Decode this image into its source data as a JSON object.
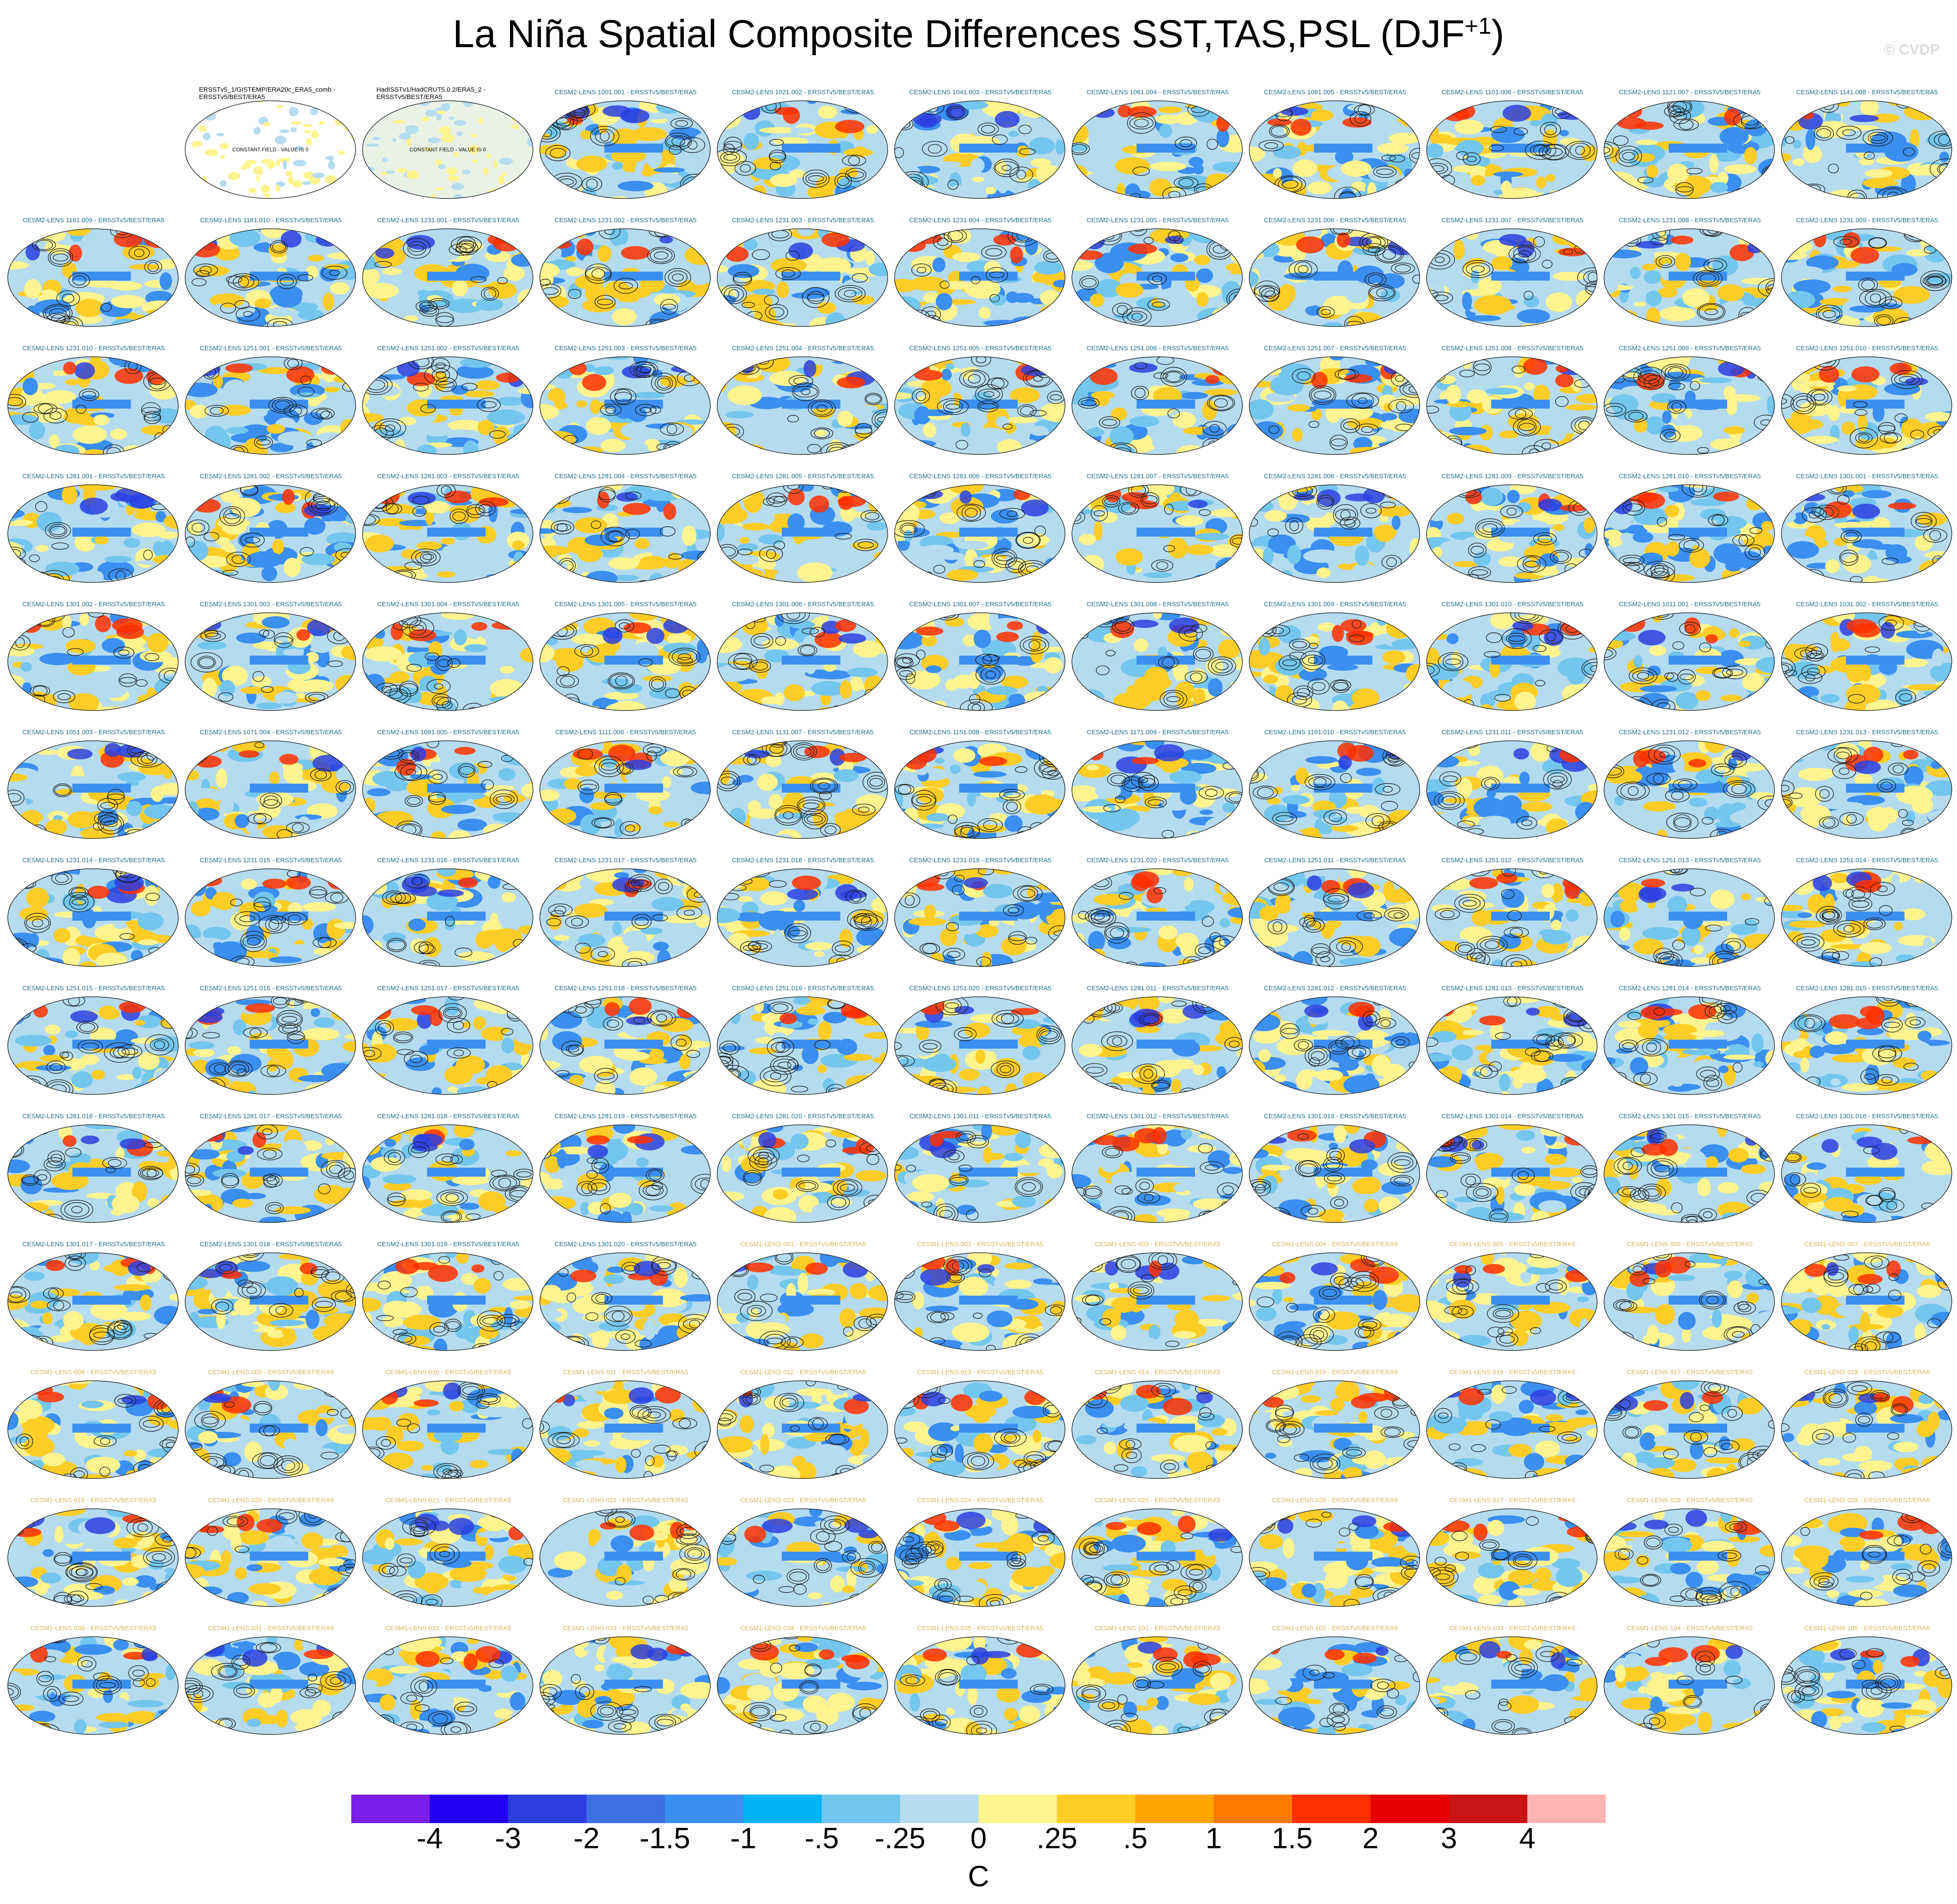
{
  "title_main": "La Niña Spatial Composite Differences SST,TAS,PSL (DJF",
  "title_sup": "+1",
  "title_close": ")",
  "watermark": "© CVDP",
  "colors": {
    "cesm2_label": "#1f6f8f",
    "cesm1_label": "#d6b85a",
    "obs_label": "#000000",
    "contour": "#1a1a1a",
    "ocean_base": "#b5dbef"
  },
  "chart_data": {
    "type": "heatmap",
    "grid": {
      "columns": 11,
      "rows": 13
    },
    "panels": [
      {
        "label": "",
        "kind": "empty"
      },
      {
        "label": "ERSSTv5_1/GISTEMP/ERA20c_ERA5_comb - ERSSTv5/BEST/ERA5",
        "kind": "obs",
        "note": "CONSTANT FIELD - VALUE IS 0"
      },
      {
        "label": "HadISSTv1/HadCRUT5.0.2/ERA5_2 - ERSSTv5/BEST/ERA5",
        "kind": "obs",
        "note": "CONSTANT FIELD - VALUE IS 0"
      },
      {
        "label": "CESM2-LENS 1001.001 - ERSSTv5/BEST/ERA5",
        "kind": "cesm2"
      },
      {
        "label": "CESM2-LENS 1021.002 - ERSSTv5/BEST/ERA5",
        "kind": "cesm2"
      },
      {
        "label": "CESM2-LENS 1041.003 - ERSSTv5/BEST/ERA5",
        "kind": "cesm2"
      },
      {
        "label": "CESM2-LENS 1061.004 - ERSSTv5/BEST/ERA5",
        "kind": "cesm2"
      },
      {
        "label": "CESM2-LENS 1081.005 - ERSSTv5/BEST/ERA5",
        "kind": "cesm2"
      },
      {
        "label": "CESM2-LENS 1101.006 - ERSSTv5/BEST/ERA5",
        "kind": "cesm2"
      },
      {
        "label": "CESM2-LENS 1121.007 - ERSSTv5/BEST/ERA5",
        "kind": "cesm2"
      },
      {
        "label": "CESM2-LENS 1141.008 - ERSSTv5/BEST/ERA5",
        "kind": "cesm2"
      },
      {
        "label": "CESM2-LENS 1161.009 - ERSSTv5/BEST/ERA5",
        "kind": "cesm2"
      },
      {
        "label": "CESM2-LENS 1181.010 - ERSSTv5/BEST/ERA5",
        "kind": "cesm2"
      },
      {
        "label": "CESM2-LENS 1231.001 - ERSSTv5/BEST/ERA5",
        "kind": "cesm2"
      },
      {
        "label": "CESM2-LENS 1231.002 - ERSSTv5/BEST/ERA5",
        "kind": "cesm2"
      },
      {
        "label": "CESM2-LENS 1231.003 - ERSSTv5/BEST/ERA5",
        "kind": "cesm2"
      },
      {
        "label": "CESM2-LENS 1231.004 - ERSSTv5/BEST/ERA5",
        "kind": "cesm2"
      },
      {
        "label": "CESM2-LENS 1231.005 - ERSSTv5/BEST/ERA5",
        "kind": "cesm2"
      },
      {
        "label": "CESM2-LENS 1231.006 - ERSSTv5/BEST/ERA5",
        "kind": "cesm2"
      },
      {
        "label": "CESM2-LENS 1231.007 - ERSSTv5/BEST/ERA5",
        "kind": "cesm2"
      },
      {
        "label": "CESM2-LENS 1231.008 - ERSSTv5/BEST/ERA5",
        "kind": "cesm2"
      },
      {
        "label": "CESM2-LENS 1231.009 - ERSSTv5/BEST/ERA5",
        "kind": "cesm2"
      },
      {
        "label": "CESM2-LENS 1231.010 - ERSSTv5/BEST/ERA5",
        "kind": "cesm2"
      },
      {
        "label": "CESM2-LENS 1251.001 - ERSSTv5/BEST/ERA5",
        "kind": "cesm2"
      },
      {
        "label": "CESM2-LENS 1251.002 - ERSSTv5/BEST/ERA5",
        "kind": "cesm2"
      },
      {
        "label": "CESM2-LENS 1251.003 - ERSSTv5/BEST/ERA5",
        "kind": "cesm2"
      },
      {
        "label": "CESM2-LENS 1251.004 - ERSSTv5/BEST/ERA5",
        "kind": "cesm2"
      },
      {
        "label": "CESM2-LENS 1251.005 - ERSSTv5/BEST/ERA5",
        "kind": "cesm2"
      },
      {
        "label": "CESM2-LENS 1251.006 - ERSSTv5/BEST/ERA5",
        "kind": "cesm2"
      },
      {
        "label": "CESM2-LENS 1251.007 - ERSSTv5/BEST/ERA5",
        "kind": "cesm2"
      },
      {
        "label": "CESM2-LENS 1251.008 - ERSSTv5/BEST/ERA5",
        "kind": "cesm2"
      },
      {
        "label": "CESM2-LENS 1251.009 - ERSSTv5/BEST/ERA5",
        "kind": "cesm2"
      },
      {
        "label": "CESM2-LENS 1251.010 - ERSSTv5/BEST/ERA5",
        "kind": "cesm2"
      },
      {
        "label": "CESM2-LENS 1281.001 - ERSSTv5/BEST/ERA5",
        "kind": "cesm2"
      },
      {
        "label": "CESM2-LENS 1281.002 - ERSSTv5/BEST/ERA5",
        "kind": "cesm2"
      },
      {
        "label": "CESM2-LENS 1281.003 - ERSSTv5/BEST/ERA5",
        "kind": "cesm2"
      },
      {
        "label": "CESM2-LENS 1281.004 - ERSSTv5/BEST/ERA5",
        "kind": "cesm2"
      },
      {
        "label": "CESM2-LENS 1281.005 - ERSSTv5/BEST/ERA5",
        "kind": "cesm2"
      },
      {
        "label": "CESM2-LENS 1281.006 - ERSSTv5/BEST/ERA5",
        "kind": "cesm2"
      },
      {
        "label": "CESM2-LENS 1281.007 - ERSSTv5/BEST/ERA5",
        "kind": "cesm2"
      },
      {
        "label": "CESM2-LENS 1281.008 - ERSSTv5/BEST/ERA5",
        "kind": "cesm2"
      },
      {
        "label": "CESM2-LENS 1281.009 - ERSSTv5/BEST/ERA5",
        "kind": "cesm2"
      },
      {
        "label": "CESM2-LENS 1281.010 - ERSSTv5/BEST/ERA5",
        "kind": "cesm2"
      },
      {
        "label": "CESM2-LENS 1301.001 - ERSSTv5/BEST/ERA5",
        "kind": "cesm2"
      },
      {
        "label": "CESM2-LENS 1301.002 - ERSSTv5/BEST/ERA5",
        "kind": "cesm2"
      },
      {
        "label": "CESM2-LENS 1301.003 - ERSSTv5/BEST/ERA5",
        "kind": "cesm2"
      },
      {
        "label": "CESM2-LENS 1301.004 - ERSSTv5/BEST/ERA5",
        "kind": "cesm2"
      },
      {
        "label": "CESM2-LENS 1301.005 - ERSSTv5/BEST/ERA5",
        "kind": "cesm2"
      },
      {
        "label": "CESM2-LENS 1301.006 - ERSSTv5/BEST/ERA5",
        "kind": "cesm2"
      },
      {
        "label": "CESM2-LENS 1301.007 - ERSSTv5/BEST/ERA5",
        "kind": "cesm2"
      },
      {
        "label": "CESM2-LENS 1301.008 - ERSSTv5/BEST/ERA5",
        "kind": "cesm2"
      },
      {
        "label": "CESM2-LENS 1301.009 - ERSSTv5/BEST/ERA5",
        "kind": "cesm2"
      },
      {
        "label": "CESM2-LENS 1301.010 - ERSSTv5/BEST/ERA5",
        "kind": "cesm2"
      },
      {
        "label": "CESM2-LENS 1011.001 - ERSSTv5/BEST/ERA5",
        "kind": "cesm2"
      },
      {
        "label": "CESM2-LENS 1031.002 - ERSSTv5/BEST/ERA5",
        "kind": "cesm2"
      },
      {
        "label": "CESM2-LENS 1051.003 - ERSSTv5/BEST/ERA5",
        "kind": "cesm2"
      },
      {
        "label": "CESM2-LENS 1071.004 - ERSSTv5/BEST/ERA5",
        "kind": "cesm2"
      },
      {
        "label": "CESM2-LENS 1091.005 - ERSSTv5/BEST/ERA5",
        "kind": "cesm2"
      },
      {
        "label": "CESM2-LENS 1111.006 - ERSSTv5/BEST/ERA5",
        "kind": "cesm2"
      },
      {
        "label": "CESM2-LENS 1131.007 - ERSSTv5/BEST/ERA5",
        "kind": "cesm2"
      },
      {
        "label": "CESM2-LENS 1151.008 - ERSSTv5/BEST/ERA5",
        "kind": "cesm2"
      },
      {
        "label": "CESM2-LENS 1171.009 - ERSSTv5/BEST/ERA5",
        "kind": "cesm2"
      },
      {
        "label": "CESM2-LENS 1191.010 - ERSSTv5/BEST/ERA5",
        "kind": "cesm2"
      },
      {
        "label": "CESM2-LENS 1231.011 - ERSSTv5/BEST/ERA5",
        "kind": "cesm2"
      },
      {
        "label": "CESM2-LENS 1231.012 - ERSSTv5/BEST/ERA5",
        "kind": "cesm2"
      },
      {
        "label": "CESM2-LENS 1231.013 - ERSSTv5/BEST/ERA5",
        "kind": "cesm2"
      },
      {
        "label": "CESM2-LENS 1231.014 - ERSSTv5/BEST/ERA5",
        "kind": "cesm2"
      },
      {
        "label": "CESM2-LENS 1231.015 - ERSSTv5/BEST/ERA5",
        "kind": "cesm2"
      },
      {
        "label": "CESM2-LENS 1231.016 - ERSSTv5/BEST/ERA5",
        "kind": "cesm2"
      },
      {
        "label": "CESM2-LENS 1231.017 - ERSSTv5/BEST/ERA5",
        "kind": "cesm2"
      },
      {
        "label": "CESM2-LENS 1231.018 - ERSSTv5/BEST/ERA5",
        "kind": "cesm2"
      },
      {
        "label": "CESM2-LENS 1231.019 - ERSSTv5/BEST/ERA5",
        "kind": "cesm2"
      },
      {
        "label": "CESM2-LENS 1231.020 - ERSSTv5/BEST/ERA5",
        "kind": "cesm2"
      },
      {
        "label": "CESM2-LENS 1251.011 - ERSSTv5/BEST/ERA5",
        "kind": "cesm2"
      },
      {
        "label": "CESM2-LENS 1251.012 - ERSSTv5/BEST/ERA5",
        "kind": "cesm2"
      },
      {
        "label": "CESM2-LENS 1251.013 - ERSSTv5/BEST/ERA5",
        "kind": "cesm2"
      },
      {
        "label": "CESM2-LENS 1251.014 - ERSSTv5/BEST/ERA5",
        "kind": "cesm2"
      },
      {
        "label": "CESM2-LENS 1251.015 - ERSSTv5/BEST/ERA5",
        "kind": "cesm2"
      },
      {
        "label": "CESM2-LENS 1251.016 - ERSSTv5/BEST/ERA5",
        "kind": "cesm2"
      },
      {
        "label": "CESM2-LENS 1251.017 - ERSSTv5/BEST/ERA5",
        "kind": "cesm2"
      },
      {
        "label": "CESM2-LENS 1251.018 - ERSSTv5/BEST/ERA5",
        "kind": "cesm2"
      },
      {
        "label": "CESM2-LENS 1251.019 - ERSSTv5/BEST/ERA5",
        "kind": "cesm2"
      },
      {
        "label": "CESM2-LENS 1251.020 - ERSSTv5/BEST/ERA5",
        "kind": "cesm2"
      },
      {
        "label": "CESM2-LENS 1281.011 - ERSSTv5/BEST/ERA5",
        "kind": "cesm2"
      },
      {
        "label": "CESM2-LENS 1281.012 - ERSSTv5/BEST/ERA5",
        "kind": "cesm2"
      },
      {
        "label": "CESM2-LENS 1281.013 - ERSSTv5/BEST/ERA5",
        "kind": "cesm2"
      },
      {
        "label": "CESM2-LENS 1281.014 - ERSSTv5/BEST/ERA5",
        "kind": "cesm2"
      },
      {
        "label": "CESM2-LENS 1281.015 - ERSSTv5/BEST/ERA5",
        "kind": "cesm2"
      },
      {
        "label": "CESM2-LENS 1281.016 - ERSSTv5/BEST/ERA5",
        "kind": "cesm2"
      },
      {
        "label": "CESM2-LENS 1281.017 - ERSSTv5/BEST/ERA5",
        "kind": "cesm2"
      },
      {
        "label": "CESM2-LENS 1281.018 - ERSSTv5/BEST/ERA5",
        "kind": "cesm2"
      },
      {
        "label": "CESM2-LENS 1281.019 - ERSSTv5/BEST/ERA5",
        "kind": "cesm2"
      },
      {
        "label": "CESM2-LENS 1281.020 - ERSSTv5/BEST/ERA5",
        "kind": "cesm2"
      },
      {
        "label": "CESM2-LENS 1301.011 - ERSSTv5/BEST/ERA5",
        "kind": "cesm2"
      },
      {
        "label": "CESM2-LENS 1301.012 - ERSSTv5/BEST/ERA5",
        "kind": "cesm2"
      },
      {
        "label": "CESM2-LENS 1301.013 - ERSSTv5/BEST/ERA5",
        "kind": "cesm2"
      },
      {
        "label": "CESM2-LENS 1301.014 - ERSSTv5/BEST/ERA5",
        "kind": "cesm2"
      },
      {
        "label": "CESM2-LENS 1301.015 - ERSSTv5/BEST/ERA5",
        "kind": "cesm2"
      },
      {
        "label": "CESM2-LENS 1301.016 - ERSSTv5/BEST/ERA5",
        "kind": "cesm2"
      },
      {
        "label": "CESM2-LENS 1301.017 - ERSSTv5/BEST/ERA5",
        "kind": "cesm2"
      },
      {
        "label": "CESM2-LENS 1301.018 - ERSSTv5/BEST/ERA5",
        "kind": "cesm2"
      },
      {
        "label": "CESM2-LENS 1301.019 - ERSSTv5/BEST/ERA5",
        "kind": "cesm2"
      },
      {
        "label": "CESM2-LENS 1301.020 - ERSSTv5/BEST/ERA5",
        "kind": "cesm2"
      },
      {
        "label": "CESM1-LENS 001 - ERSSTv5/BEST/ERA5",
        "kind": "cesm1"
      },
      {
        "label": "CESM1-LENS 002 - ERSSTv5/BEST/ERA5",
        "kind": "cesm1"
      },
      {
        "label": "CESM1-LENS 003 - ERSSTv5/BEST/ERA5",
        "kind": "cesm1"
      },
      {
        "label": "CESM1-LENS 004 - ERSSTv5/BEST/ERA5",
        "kind": "cesm1"
      },
      {
        "label": "CESM1-LENS 005 - ERSSTv5/BEST/ERA5",
        "kind": "cesm1"
      },
      {
        "label": "CESM1-LENS 006 - ERSSTv5/BEST/ERA5",
        "kind": "cesm1"
      },
      {
        "label": "CESM1-LENS 007 - ERSSTv5/BEST/ERA5",
        "kind": "cesm1"
      },
      {
        "label": "CESM1-LENS 008 - ERSSTv5/BEST/ERA5",
        "kind": "cesm1"
      },
      {
        "label": "CESM1-LENS 009 - ERSSTv5/BEST/ERA5",
        "kind": "cesm1"
      },
      {
        "label": "CESM1-LENS 010 - ERSSTv5/BEST/ERA5",
        "kind": "cesm1"
      },
      {
        "label": "CESM1-LENS 011 - ERSSTv5/BEST/ERA5",
        "kind": "cesm1"
      },
      {
        "label": "CESM1-LENS 012 - ERSSTv5/BEST/ERA5",
        "kind": "cesm1"
      },
      {
        "label": "CESM1-LENS 013 - ERSSTv5/BEST/ERA5",
        "kind": "cesm1"
      },
      {
        "label": "CESM1-LENS 014 - ERSSTv5/BEST/ERA5",
        "kind": "cesm1"
      },
      {
        "label": "CESM1-LENS 015 - ERSSTv5/BEST/ERA5",
        "kind": "cesm1"
      },
      {
        "label": "CESM1-LENS 016 - ERSSTv5/BEST/ERA5",
        "kind": "cesm1"
      },
      {
        "label": "CESM1-LENS 017 - ERSSTv5/BEST/ERA5",
        "kind": "cesm1"
      },
      {
        "label": "CESM1-LENS 018 - ERSSTv5/BEST/ERA5",
        "kind": "cesm1"
      },
      {
        "label": "CESM1-LENS 019 - ERSSTv5/BEST/ERA5",
        "kind": "cesm1"
      },
      {
        "label": "CESM1-LENS 020 - ERSSTv5/BEST/ERA5",
        "kind": "cesm1"
      },
      {
        "label": "CESM1-LENS 021 - ERSSTv5/BEST/ERA5",
        "kind": "cesm1"
      },
      {
        "label": "CESM1-LENS 022 - ERSSTv5/BEST/ERA5",
        "kind": "cesm1"
      },
      {
        "label": "CESM1-LENS 023 - ERSSTv5/BEST/ERA5",
        "kind": "cesm1"
      },
      {
        "label": "CESM1-LENS 024 - ERSSTv5/BEST/ERA5",
        "kind": "cesm1"
      },
      {
        "label": "CESM1-LENS 025 - ERSSTv5/BEST/ERA5",
        "kind": "cesm1"
      },
      {
        "label": "CESM1-LENS 026 - ERSSTv5/BEST/ERA5",
        "kind": "cesm1"
      },
      {
        "label": "CESM1-LENS 027 - ERSSTv5/BEST/ERA5",
        "kind": "cesm1"
      },
      {
        "label": "CESM1-LENS 028 - ERSSTv5/BEST/ERA5",
        "kind": "cesm1"
      },
      {
        "label": "CESM1-LENS 029 - ERSSTv5/BEST/ERA5",
        "kind": "cesm1"
      },
      {
        "label": "CESM1-LENS 030 - ERSSTv5/BEST/ERA5",
        "kind": "cesm1"
      },
      {
        "label": "CESM1-LENS 031 - ERSSTv5/BEST/ERA5",
        "kind": "cesm1"
      },
      {
        "label": "CESM1-LENS 032 - ERSSTv5/BEST/ERA5",
        "kind": "cesm1"
      },
      {
        "label": "CESM1-LENS 033 - ERSSTv5/BEST/ERA5",
        "kind": "cesm1"
      },
      {
        "label": "CESM1-LENS 034 - ERSSTv5/BEST/ERA5",
        "kind": "cesm1"
      },
      {
        "label": "CESM1-LENS 035 - ERSSTv5/BEST/ERA5",
        "kind": "cesm1"
      },
      {
        "label": "CESM1-LENS 101 - ERSSTv5/BEST/ERA5",
        "kind": "cesm1"
      },
      {
        "label": "CESM1-LENS 102 - ERSSTv5/BEST/ERA5",
        "kind": "cesm1"
      },
      {
        "label": "CESM1-LENS 103 - ERSSTv5/BEST/ERA5",
        "kind": "cesm1"
      },
      {
        "label": "CESM1-LENS 104 - ERSSTv5/BEST/ERA5",
        "kind": "cesm1"
      },
      {
        "label": "CESM1-LENS 105 - ERSSTv5/BEST/ERA5",
        "kind": "cesm1"
      }
    ],
    "colorbar": {
      "colors": [
        "#7b1fe8",
        "#2400f0",
        "#2b3fe0",
        "#3e6fe3",
        "#3a8ff0",
        "#00b4f6",
        "#73c6ee",
        "#b6dcf0",
        "#fff48f",
        "#ffcd25",
        "#ffa500",
        "#ff7800",
        "#ff3000",
        "#e60000",
        "#c81414",
        "#ffb4b4"
      ],
      "ticks": [
        "-4",
        "-3",
        "-2",
        "-1.5",
        "-1",
        "-.5",
        "-.25",
        "0",
        ".25",
        ".5",
        "1",
        "1.5",
        "2",
        "3",
        "4"
      ],
      "units": "C"
    }
  }
}
